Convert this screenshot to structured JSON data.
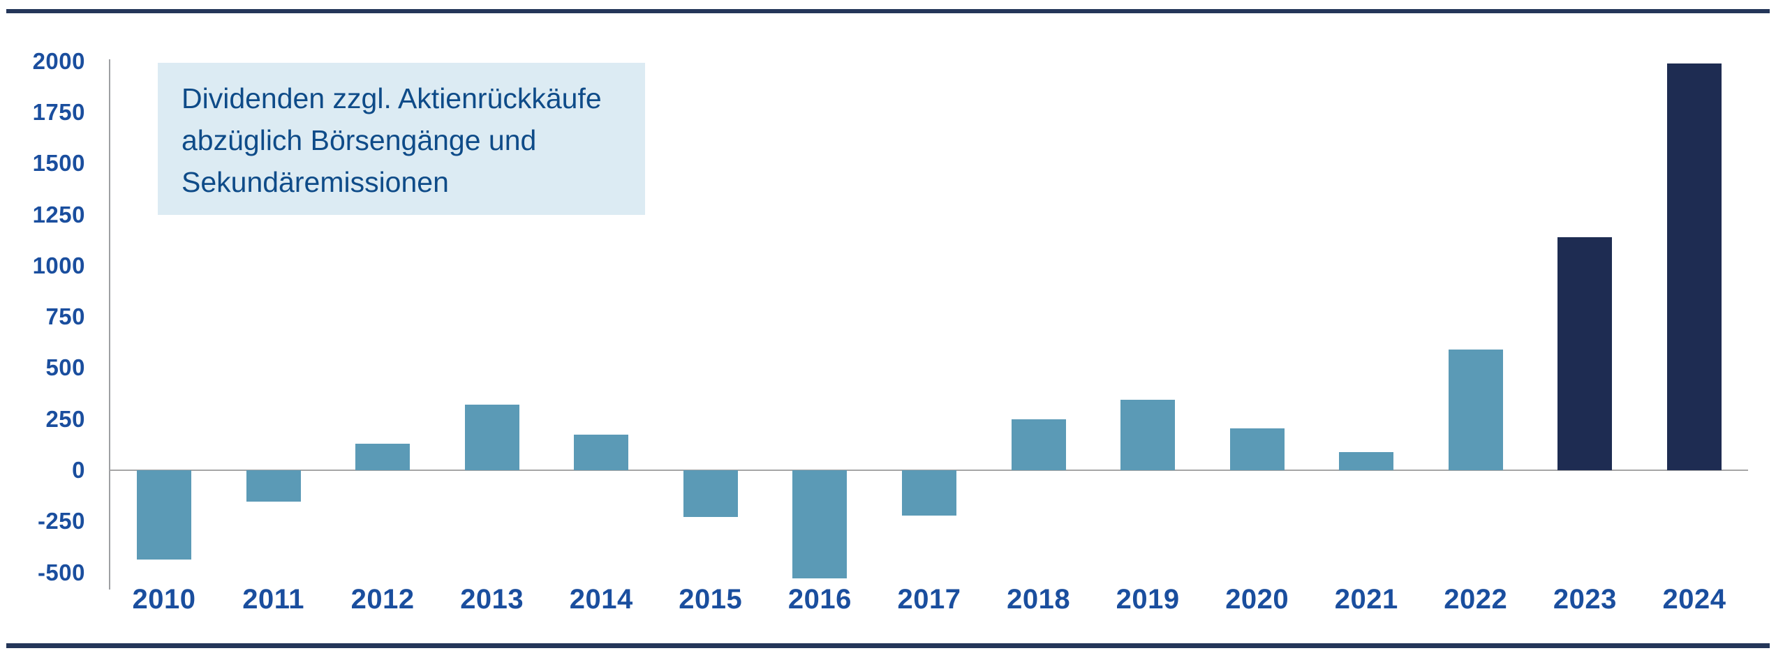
{
  "chart_data": {
    "type": "bar",
    "categories": [
      "2010",
      "2011",
      "2012",
      "2013",
      "2014",
      "2015",
      "2016",
      "2017",
      "2018",
      "2019",
      "2020",
      "2021",
      "2022",
      "2023",
      "2024"
    ],
    "values": [
      -435,
      -155,
      130,
      320,
      175,
      -230,
      -530,
      -220,
      250,
      345,
      205,
      90,
      590,
      1140,
      1990
    ],
    "highlight_categories": [
      "2023",
      "2024"
    ],
    "y_ticks": [
      2000,
      1750,
      1500,
      1250,
      1000,
      750,
      500,
      250,
      0,
      -250,
      -500
    ],
    "ylim": [
      -560,
      2050
    ],
    "grid": "zero-line-only",
    "legend_position": "none",
    "title": "",
    "xlabel": "",
    "ylabel": "",
    "annotation": "Dividenden zzgl. Aktienrückkäufe abzüglich Börsengänge und Sekundäremissionen",
    "colors": {
      "bar_default": "#5B9AB6",
      "bar_highlight": "#1E2C52",
      "rule": "#243659",
      "axis_line": "#9EA0A3",
      "zero_line": "#A6A6A6",
      "axis_label": "#1A4E9E",
      "annotation_text": "#0E4B88",
      "annotation_bg": "#DCEBF3"
    }
  },
  "annotation": {
    "lines": [
      "Dividenden zzgl. Aktienrückkäufe",
      "abzüglich Börsengänge und",
      "Sekundäremissionen"
    ]
  }
}
